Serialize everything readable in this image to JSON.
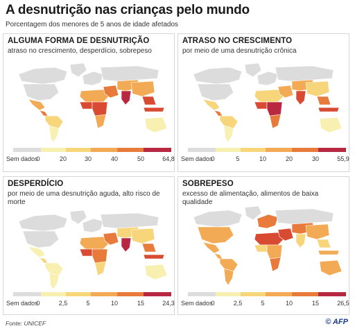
{
  "header": {
    "title": "A desnutrição nas crianças pelo mundo",
    "subtitle": "Porcentagem dos menores de 5 anos de idade afetados"
  },
  "panels": [
    {
      "title": "ALGUMA FORMA DE DESNUTRIÇÃO",
      "desc": "atraso no crescimento, desperdício, sobrepeso",
      "nodata": "Sem dados",
      "ticks": [
        "0",
        "20",
        "30",
        "40",
        "50",
        "64,8"
      ]
    },
    {
      "title": "ATRASO NO CRESCIMENTO",
      "desc": "por meio de uma desnutrição crônica",
      "nodata": "Sem dados",
      "ticks": [
        "0",
        "5",
        "10",
        "20",
        "30",
        "55,9"
      ]
    },
    {
      "title": "DESPERDÍCIO",
      "desc": "por meio de uma desnutrição aguda, alto risco de morte",
      "nodata": "Sem dados",
      "ticks": [
        "0",
        "2,5",
        "5",
        "10",
        "15",
        "24,3"
      ]
    },
    {
      "title": "SOBREPESO",
      "desc": "excesso de alimentação, alimentos de baixa qualidade",
      "nodata": "Sem dados",
      "ticks": [
        "0",
        "2,5",
        "5",
        "10",
        "15",
        "26,5"
      ]
    }
  ],
  "colors": {
    "nodata": "#dcdcdc",
    "scale": [
      "#f7f0b0",
      "#f7d57a",
      "#f3aa55",
      "#e87a3c",
      "#d84a32",
      "#b82840"
    ]
  },
  "footer": {
    "source": "Fonte: UNICEF",
    "agency": "© AFP"
  }
}
